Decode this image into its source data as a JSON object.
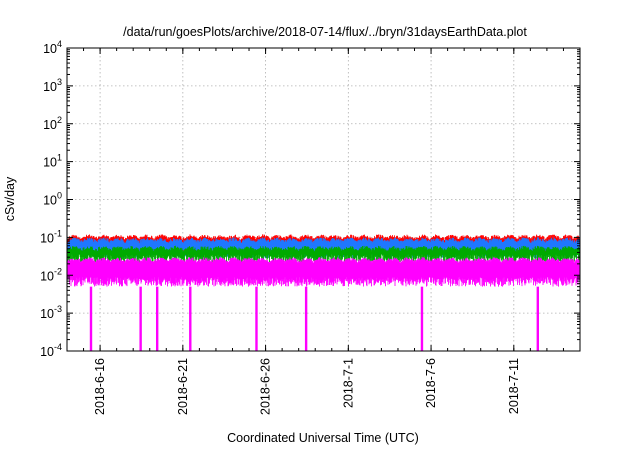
{
  "chart_data": {
    "type": "line",
    "title": "/data/run/goesPlots/archive/2018-07-14/flux/../bryn/31daysEarthData.plot",
    "xlabel": "Coordinated Universal Time (UTC)",
    "ylabel": "cSv/day",
    "yscale": "log",
    "ylim": [
      0.0001,
      10000
    ],
    "xlim": [
      "2018-06-14",
      "2018-07-15"
    ],
    "grid": true,
    "legend": "none",
    "y_ticks": [
      {
        "mantissa": "10",
        "exp": "-4",
        "value": 0.0001
      },
      {
        "mantissa": "10",
        "exp": "-3",
        "value": 0.001
      },
      {
        "mantissa": "10",
        "exp": "-2",
        "value": 0.01
      },
      {
        "mantissa": "10",
        "exp": "-1",
        "value": 0.1
      },
      {
        "mantissa": "10",
        "exp": "0",
        "value": 1
      },
      {
        "mantissa": "10",
        "exp": "1",
        "value": 10
      },
      {
        "mantissa": "10",
        "exp": "2",
        "value": 100
      },
      {
        "mantissa": "10",
        "exp": "3",
        "value": 1000
      },
      {
        "mantissa": "10",
        "exp": "4",
        "value": 10000
      }
    ],
    "x_ticks": [
      "2018-6-16",
      "2018-6-21",
      "2018-6-26",
      "2018-7-1",
      "2018-7-6",
      "2018-7-11"
    ],
    "series": [
      {
        "color": "#ff0000",
        "envelope": [
          0.035,
          0.12
        ]
      },
      {
        "color": "#1f77ff",
        "envelope": [
          0.028,
          0.1
        ]
      },
      {
        "color": "#00aa00",
        "envelope": [
          0.02,
          0.06
        ]
      },
      {
        "color": "#ff00ff",
        "envelope": [
          0.005,
          0.03
        ]
      }
    ],
    "dropouts": [
      "2018-06-15",
      "2018-06-18",
      "2018-06-19",
      "2018-06-21",
      "2018-06-25",
      "2018-06-28",
      "2018-07-05",
      "2018-07-12"
    ]
  }
}
